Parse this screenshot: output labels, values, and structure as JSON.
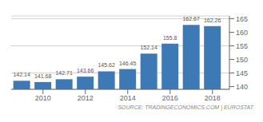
{
  "chart_data": {
    "type": "bar",
    "x": [
      2009,
      2010,
      2011,
      2012,
      2013,
      2014,
      2015,
      2016,
      2017,
      2018
    ],
    "values": [
      142.14,
      141.68,
      142.71,
      143.66,
      145.62,
      146.45,
      152.14,
      155.8,
      162.67,
      162.26
    ],
    "color": "#3d7ab5",
    "xlim": [
      2008.5,
      2018.8
    ],
    "xticks": [
      2010,
      2012,
      2014,
      2016,
      2018
    ],
    "ylim": [
      139,
      166
    ],
    "yticks": [
      140,
      145,
      150,
      155,
      160,
      165
    ],
    "grid": "y",
    "data_labels": true,
    "annotations": [
      "SOURCE: TRADINGECONOMICS.COM | EUROSTAT"
    ]
  }
}
